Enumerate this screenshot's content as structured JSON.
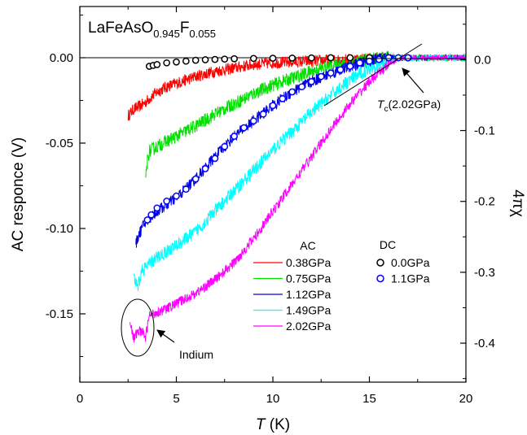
{
  "chart_data": {
    "type": "line",
    "title": {
      "base": "LaFeAsO",
      "sub1": "0.945",
      "mid": "F",
      "sub2": "0.055"
    },
    "xlabel": {
      "italic": "T",
      "rest": " (K)"
    },
    "ylabel": "AC responce (V)",
    "y2label": "4πχ",
    "xlim": [
      0,
      20
    ],
    "ylim": [
      -0.19,
      0.03
    ],
    "y2lim": [
      -0.455,
      0.075
    ],
    "xticks": [
      "0",
      "5",
      "10",
      "15",
      "20"
    ],
    "yticks": [
      "0.00",
      "-0.05",
      "-0.10",
      "-0.15"
    ],
    "y2ticks": [
      "0.0",
      "-0.1",
      "-0.2",
      "-0.3",
      "-0.4"
    ],
    "legend_ac_title": "AC",
    "legend_dc_title": "DC",
    "series": [
      {
        "name": "0.38GPa",
        "kind": "AC",
        "color": "#ff0000",
        "noise": 0.0035,
        "x": [
          2.5,
          2.8,
          3.0,
          3.3,
          3.6,
          4.0,
          4.5,
          5.0,
          6.0,
          7.0,
          8.0,
          9.0,
          10.0,
          12.0,
          14.0,
          16.0,
          18.0,
          20.0
        ],
        "y": [
          -0.034,
          -0.03,
          -0.029,
          -0.027,
          -0.024,
          -0.02,
          -0.017,
          -0.015,
          -0.011,
          -0.008,
          -0.006,
          -0.004,
          -0.003,
          -0.002,
          -0.001,
          0.0,
          0.0,
          0.0
        ]
      },
      {
        "name": "0.75GPa",
        "kind": "AC",
        "color": "#00e000",
        "noise": 0.004,
        "x": [
          3.4,
          3.5,
          3.6,
          4.0,
          5.0,
          6.0,
          7.0,
          8.0,
          9.0,
          10.0,
          11.0,
          12.0,
          13.0,
          14.0,
          15.0,
          16.0,
          17.0,
          18.0,
          20.0
        ],
        "y": [
          -0.073,
          -0.06,
          -0.055,
          -0.052,
          -0.046,
          -0.04,
          -0.033,
          -0.027,
          -0.021,
          -0.016,
          -0.012,
          -0.008,
          -0.005,
          -0.003,
          -0.001,
          0.0,
          0.0,
          0.0,
          0.0
        ]
      },
      {
        "name": "1.12GPa",
        "kind": "AC",
        "color": "#0000e0",
        "noise": 0.0035,
        "x": [
          2.9,
          3.0,
          3.3,
          3.6,
          4.0,
          5.0,
          6.0,
          7.0,
          8.0,
          9.0,
          10.0,
          11.0,
          12.0,
          13.0,
          14.0,
          15.0,
          16.0,
          17.0,
          18.0,
          20.0
        ],
        "y": [
          -0.11,
          -0.105,
          -0.098,
          -0.094,
          -0.09,
          -0.082,
          -0.071,
          -0.058,
          -0.046,
          -0.037,
          -0.028,
          -0.02,
          -0.014,
          -0.009,
          -0.005,
          -0.002,
          0.0,
          0.0,
          0.0,
          0.0
        ]
      },
      {
        "name": "1.49GPa",
        "kind": "AC",
        "color": "#00ffff",
        "noise": 0.004,
        "x": [
          2.8,
          3.0,
          3.2,
          3.5,
          4.0,
          5.0,
          6.0,
          7.0,
          8.0,
          9.0,
          10.0,
          11.0,
          12.0,
          13.0,
          14.0,
          15.0,
          16.0,
          16.5,
          17.0,
          18.0,
          20.0
        ],
        "y": [
          -0.13,
          -0.135,
          -0.125,
          -0.122,
          -0.117,
          -0.11,
          -0.102,
          -0.09,
          -0.078,
          -0.066,
          -0.054,
          -0.043,
          -0.032,
          -0.022,
          -0.013,
          -0.006,
          -0.002,
          0.0,
          0.0,
          0.0,
          0.0
        ]
      },
      {
        "name": "2.02GPa",
        "kind": "AC",
        "color": "#ff00ff",
        "noise": 0.003,
        "x": [
          2.6,
          2.8,
          3.0,
          3.2,
          3.4,
          3.6,
          3.8,
          4.0,
          4.5,
          5.0,
          6.0,
          7.0,
          8.0,
          9.0,
          10.0,
          11.0,
          12.0,
          13.0,
          14.0,
          15.0,
          16.0,
          16.6,
          17.0,
          18.0,
          19.0,
          20.0
        ],
        "y": [
          -0.154,
          -0.165,
          -0.16,
          -0.16,
          -0.164,
          -0.151,
          -0.15,
          -0.149,
          -0.147,
          -0.144,
          -0.138,
          -0.13,
          -0.12,
          -0.106,
          -0.09,
          -0.074,
          -0.058,
          -0.042,
          -0.027,
          -0.014,
          -0.004,
          0.0,
          0.0,
          0.0,
          0.0,
          0.0
        ]
      },
      {
        "name": "0.0GPa",
        "kind": "DC",
        "color": "#000000",
        "markers": true,
        "x": [
          3.6,
          3.8,
          4.0,
          4.5,
          5.0,
          5.5,
          6.0,
          6.5,
          7.0,
          7.5,
          8.0,
          9.0,
          10.0,
          11.0,
          12.0,
          13.0,
          14.0,
          15.0,
          16.0,
          17.0
        ],
        "y": [
          -0.005,
          -0.0045,
          -0.004,
          -0.003,
          -0.0025,
          -0.002,
          -0.0015,
          -0.0012,
          -0.001,
          -0.0008,
          -0.0006,
          -0.0004,
          -0.0003,
          -0.0002,
          -0.0001,
          0.0,
          0.0,
          0.0,
          0.0,
          0.0
        ]
      },
      {
        "name": "1.1GPa",
        "kind": "DC",
        "color": "#0000ff",
        "markers": true,
        "x": [
          3.5,
          3.7,
          4.0,
          4.5,
          5.0,
          5.5,
          6.0,
          6.5,
          7.0,
          7.5,
          8.0,
          8.5,
          9.0,
          9.5,
          10.0,
          10.5,
          11.0,
          11.5,
          12.0,
          12.5,
          13.0,
          13.5,
          14.0,
          14.5,
          15.0,
          15.5,
          16.0,
          16.5,
          17.0
        ],
        "y": [
          -0.095,
          -0.092,
          -0.088,
          -0.084,
          -0.081,
          -0.077,
          -0.071,
          -0.065,
          -0.059,
          -0.052,
          -0.046,
          -0.041,
          -0.037,
          -0.033,
          -0.028,
          -0.024,
          -0.02,
          -0.017,
          -0.014,
          -0.011,
          -0.009,
          -0.007,
          -0.005,
          -0.003,
          -0.002,
          -0.001,
          0.0,
          0.0,
          0.0
        ]
      }
    ],
    "annotations": {
      "tc": {
        "italic": "T",
        "sub": "c",
        "rest": "(2.02GPa)"
      },
      "indium": "Indium"
    }
  }
}
